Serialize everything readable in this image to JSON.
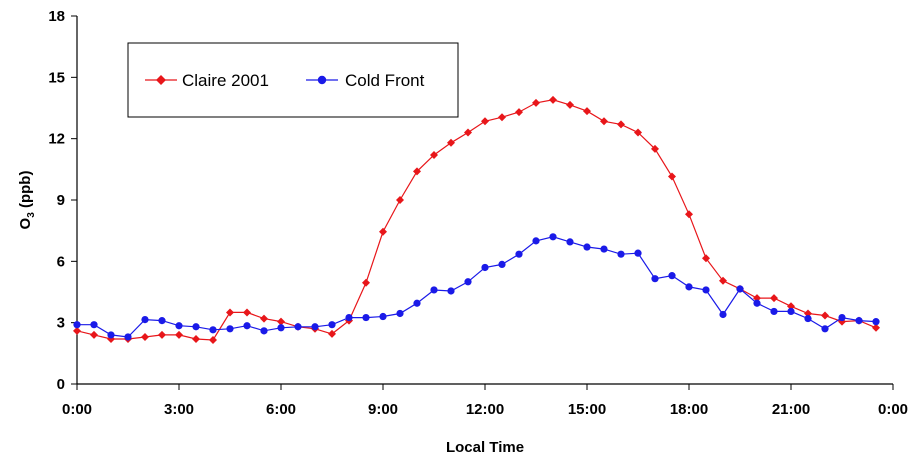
{
  "chart_data": {
    "type": "line",
    "xlabel": "Local Time",
    "ylabel_main": "O",
    "ylabel_sub": "3",
    "ylabel_rest": " (ppb)",
    "ylim": [
      0,
      18
    ],
    "yticks": [
      0,
      3,
      6,
      9,
      12,
      15,
      18
    ],
    "xlim": [
      0,
      24
    ],
    "xticks": [
      0,
      3,
      6,
      9,
      12,
      15,
      18,
      21,
      24
    ],
    "xtick_labels": [
      "0:00",
      "3:00",
      "6:00",
      "9:00",
      "12:00",
      "15:00",
      "18:00",
      "21:00",
      "0:00"
    ],
    "grid": false,
    "legend_position": "top-left",
    "x": [
      0,
      0.5,
      1,
      1.5,
      2,
      2.5,
      3,
      3.5,
      4,
      4.5,
      5,
      5.5,
      6,
      6.5,
      7,
      7.5,
      8,
      8.5,
      9,
      9.5,
      10,
      10.5,
      11,
      11.5,
      12,
      12.5,
      13,
      13.5,
      14,
      14.5,
      15,
      15.5,
      16,
      16.5,
      17,
      17.5,
      18,
      18.5,
      19,
      19.5,
      20,
      20.5,
      21,
      21.5,
      22,
      22.5,
      23,
      23.5
    ],
    "series": [
      {
        "name": "Claire 2001",
        "color": "#e8161a",
        "marker": "diamond",
        "values": [
          2.6,
          2.4,
          2.2,
          2.2,
          2.3,
          2.4,
          2.4,
          2.2,
          2.15,
          3.5,
          3.5,
          3.2,
          3.05,
          2.8,
          2.7,
          2.45,
          3.1,
          4.95,
          7.45,
          9.0,
          10.4,
          11.2,
          11.8,
          12.3,
          12.85,
          13.05,
          13.3,
          13.75,
          13.9,
          13.65,
          13.35,
          12.85,
          12.7,
          12.3,
          11.5,
          10.15,
          8.3,
          6.15,
          5.05,
          4.65,
          4.2,
          4.2,
          3.8,
          3.45,
          3.35,
          3.05,
          3.1,
          2.75
        ]
      },
      {
        "name": "Cold Front",
        "color": "#1a1ae8",
        "marker": "circle",
        "values": [
          2.9,
          2.9,
          2.4,
          2.3,
          3.15,
          3.1,
          2.85,
          2.8,
          2.65,
          2.7,
          2.85,
          2.6,
          2.75,
          2.8,
          2.8,
          2.9,
          3.25,
          3.25,
          3.3,
          3.45,
          3.95,
          4.6,
          4.55,
          5.0,
          5.7,
          5.85,
          6.35,
          7.0,
          7.2,
          6.95,
          6.7,
          6.6,
          6.35,
          6.4,
          5.15,
          5.3,
          4.75,
          4.6,
          3.4,
          4.65,
          3.95,
          3.55,
          3.55,
          3.2,
          2.7,
          3.25,
          3.1,
          3.05
        ]
      }
    ]
  }
}
